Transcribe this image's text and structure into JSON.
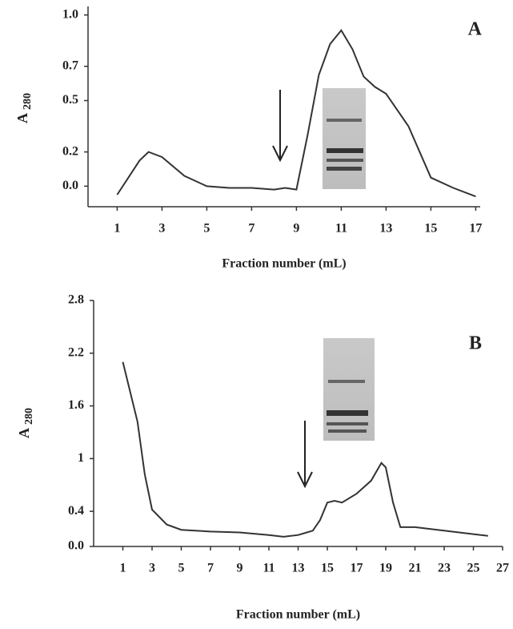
{
  "chart_data": [
    {
      "type": "line",
      "panel_label": "A",
      "ylabel": "A",
      "ylabel_subscript": "280",
      "xlabel": "Fraction number (mL)",
      "color": "#333333",
      "x": [
        1,
        1.5,
        2,
        2.4,
        3,
        4,
        5,
        6,
        7,
        8,
        8.5,
        9,
        9.5,
        10,
        10.5,
        11,
        11.5,
        12,
        12.5,
        13,
        14,
        15,
        16,
        17
      ],
      "values": [
        -0.05,
        0.05,
        0.15,
        0.2,
        0.17,
        0.06,
        0.0,
        -0.01,
        -0.01,
        -0.02,
        -0.01,
        -0.02,
        0.3,
        0.65,
        0.83,
        0.91,
        0.8,
        0.64,
        0.58,
        0.54,
        0.35,
        0.05,
        -0.01,
        -0.06
      ],
      "xlim": [
        -0.3,
        17.2
      ],
      "ylim": [
        -0.12,
        1.05
      ],
      "xticks": [
        1,
        3,
        5,
        7,
        9,
        11,
        13,
        15,
        17
      ],
      "yticks": [
        {
          "value": 0,
          "label": "0.0"
        },
        0.2,
        0.5,
        0.7,
        {
          "value": 1,
          "label": "1.0"
        }
      ]
    },
    {
      "type": "line",
      "panel_label": "B",
      "ylabel": "A",
      "ylabel_subscript": "280",
      "xlabel": "Fraction number (mL)",
      "color": "#333333",
      "x": [
        1,
        2,
        2.5,
        3,
        4,
        5,
        7,
        9,
        11,
        12,
        13,
        14,
        14.5,
        15,
        15.5,
        16,
        17,
        18,
        18.7,
        19,
        19.5,
        20,
        21,
        23,
        25,
        26
      ],
      "values": [
        2.1,
        1.42,
        0.82,
        0.42,
        0.25,
        0.19,
        0.17,
        0.16,
        0.13,
        0.11,
        0.13,
        0.18,
        0.3,
        0.5,
        0.52,
        0.5,
        0.6,
        0.75,
        0.95,
        0.9,
        0.5,
        0.22,
        0.22,
        0.18,
        0.14,
        0.12
      ],
      "xlim": [
        -1,
        27
      ],
      "ylim": [
        0,
        2.8
      ],
      "xticks": [
        1,
        3,
        5,
        7,
        9,
        11,
        13,
        15,
        17,
        19,
        21,
        23,
        25,
        27
      ],
      "yticks": [
        {
          "value": 0,
          "label": "0.0"
        },
        0.4,
        1,
        1.6,
        2.2,
        2.8
      ]
    }
  ]
}
